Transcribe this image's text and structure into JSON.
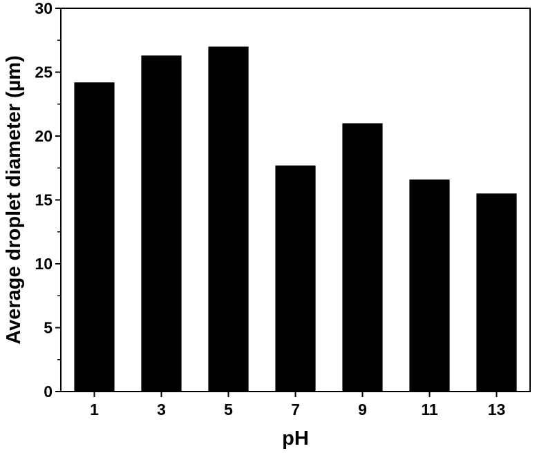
{
  "chart_data": {
    "type": "bar",
    "title": "",
    "xlabel": "pH",
    "ylabel": "Average droplet diameter (µm)",
    "categories": [
      "1",
      "3",
      "5",
      "7",
      "9",
      "11",
      "13"
    ],
    "values": [
      24.2,
      26.3,
      27.0,
      17.7,
      21.0,
      16.6,
      15.5
    ],
    "ylim": [
      0,
      30
    ],
    "yticks": [
      "0",
      "5",
      "10",
      "15",
      "20",
      "25",
      "30"
    ],
    "grid": false,
    "legend": "none",
    "bar_color": "#000000"
  }
}
